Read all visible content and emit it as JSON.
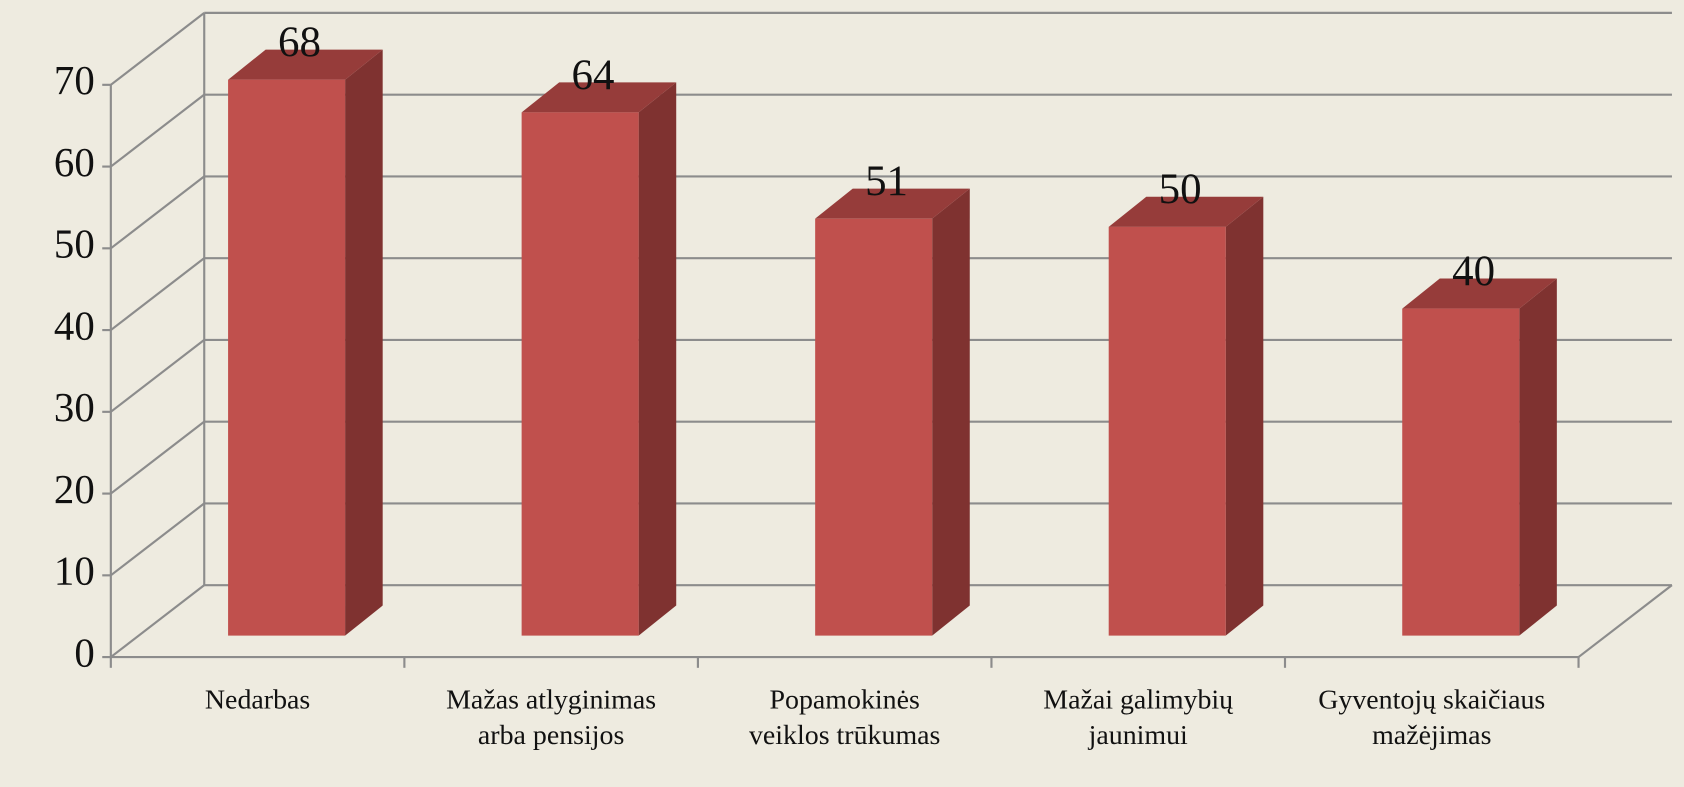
{
  "chart_data": {
    "type": "bar3d",
    "categories": [
      "Nedarbas",
      "Mažas atlyginimas arba pensijos",
      "Popamokinės veiklos trūkumas",
      "Mažai galimybių jaunimui",
      "Gyventojų skaičiaus mažėjimas"
    ],
    "values": [
      68,
      64,
      51,
      50,
      40
    ],
    "colors": {
      "front": "#c0504d",
      "side": "#7f3230",
      "top": "#963c3a"
    },
    "ylim": [
      0,
      70
    ],
    "yticks": [
      0,
      10,
      20,
      30,
      40,
      50,
      60,
      70
    ],
    "grid": true
  }
}
